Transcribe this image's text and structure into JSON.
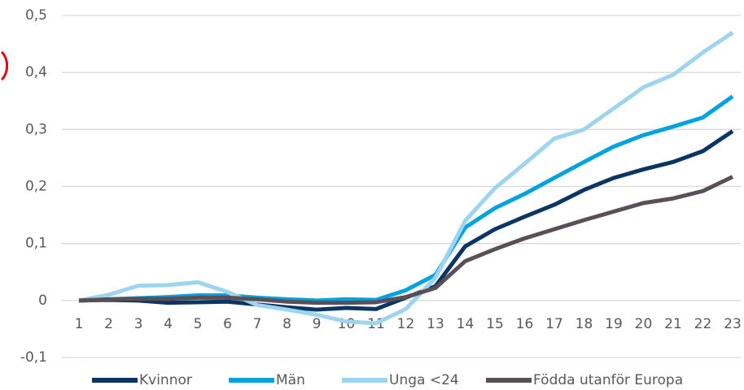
{
  "chart_data": {
    "type": "line",
    "categories": [
      "1",
      "2",
      "3",
      "4",
      "5",
      "6",
      "7",
      "8",
      "9",
      "10",
      "11",
      "12",
      "13",
      "14",
      "15",
      "16",
      "17",
      "18",
      "19",
      "20",
      "21",
      "22",
      "23"
    ],
    "series": [
      {
        "name": "Kvinnor",
        "color": "#0b3563",
        "values": [
          0,
          0.001,
          0,
          -0.004,
          -0.003,
          -0.002,
          -0.007,
          -0.012,
          -0.016,
          -0.013,
          -0.015,
          0.005,
          0.025,
          0.095,
          0.125,
          0.147,
          0.168,
          0.194,
          0.215,
          0.23,
          0.243,
          0.262,
          0.297
        ]
      },
      {
        "name": "Män",
        "color": "#00a3e0",
        "values": [
          0,
          0.002,
          0.004,
          0.006,
          0.009,
          0.009,
          0.005,
          0.002,
          0,
          0.002,
          0.001,
          0.018,
          0.045,
          0.128,
          0.162,
          0.187,
          0.215,
          0.243,
          0.27,
          0.29,
          0.305,
          0.321,
          0.358
        ]
      },
      {
        "name": "Unga <24",
        "color": "#9dd5f0",
        "values": [
          0,
          0.01,
          0.026,
          0.027,
          0.032,
          0.015,
          -0.008,
          -0.016,
          -0.025,
          -0.037,
          -0.04,
          -0.015,
          0.04,
          0.14,
          0.197,
          0.24,
          0.284,
          0.3,
          0.337,
          0.374,
          0.396,
          0.435,
          0.47
        ]
      },
      {
        "name": "Födda utanför Europa",
        "color": "#5b4f57",
        "values": [
          0,
          0.002,
          0.003,
          0.003,
          0.005,
          0.005,
          0.002,
          -0.002,
          -0.004,
          -0.004,
          -0.003,
          0.006,
          0.022,
          0.069,
          0.09,
          0.109,
          0.125,
          0.141,
          0.156,
          0.171,
          0.179,
          0.192,
          0.217
        ]
      }
    ],
    "ylim": [
      -0.1,
      0.5
    ],
    "yticks": [
      {
        "value": -0.1,
        "label": "-0,1"
      },
      0,
      {
        "value": 0.1,
        "label": "0,1"
      },
      {
        "value": 0.2,
        "label": "0,2"
      },
      {
        "value": 0.3,
        "label": "0,3"
      },
      {
        "value": 0.4,
        "label": "0,4"
      },
      {
        "value": 0.5,
        "label": "0,5"
      }
    ],
    "grid": true,
    "legend": "bottom"
  }
}
